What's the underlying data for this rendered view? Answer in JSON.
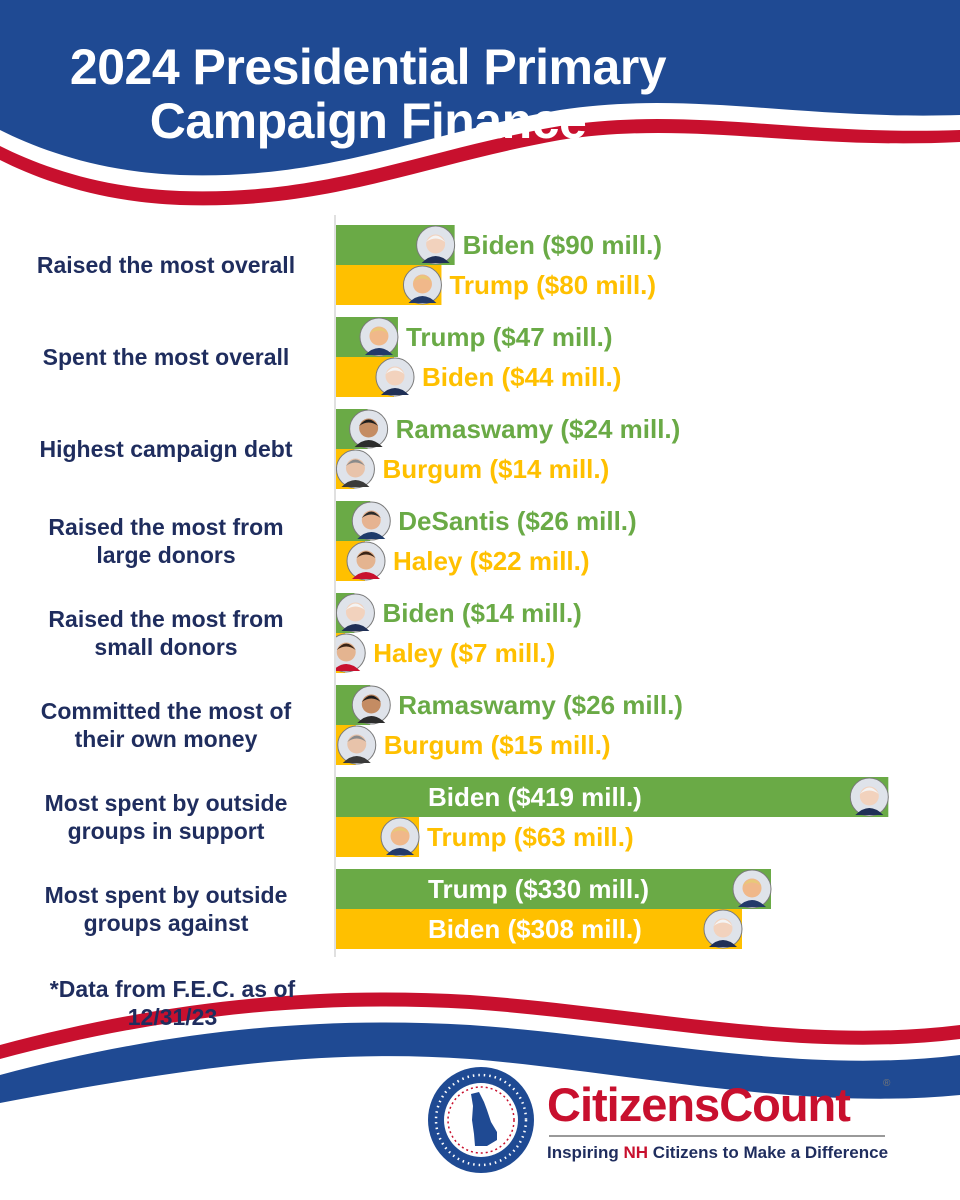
{
  "title": {
    "line1": "2024 Presidential Primary",
    "line2": "Campaign Finance"
  },
  "colors": {
    "navy": "#1f4a93",
    "red": "#c8102e",
    "text_navy": "#1f2d5e",
    "first_bar": "#6aaa46",
    "second_bar": "#ffc000"
  },
  "chart_data": {
    "type": "bar",
    "orientation": "horizontal",
    "unit": "million USD",
    "xlim": [
      0,
      440
    ],
    "grid": false,
    "categories": [
      "Raised the most overall",
      "Spent the most overall",
      "Highest campaign debt",
      "Raised the most from large donors",
      "Raised the most from small donors",
      "Committed the most of their own money",
      "Most spent by outside groups in support",
      "Most spent by outside groups against"
    ],
    "groups": [
      {
        "category": "Raised the most overall",
        "lines": [
          "Raised the most overall"
        ],
        "bars": [
          {
            "candidate": "Biden",
            "value": 90,
            "label": "Biden ($90 mill.)",
            "photo_icon": "biden-photo-icon"
          },
          {
            "candidate": "Trump",
            "value": 80,
            "label": "Trump ($80 mill.)",
            "photo_icon": "trump-photo-icon"
          }
        ]
      },
      {
        "category": "Spent the most overall",
        "lines": [
          "Spent the most overall"
        ],
        "bars": [
          {
            "candidate": "Trump",
            "value": 47,
            "label": "Trump ($47 mill.)",
            "photo_icon": "trump-photo-icon"
          },
          {
            "candidate": "Biden",
            "value": 44,
            "label": "Biden ($44 mill.)",
            "photo_icon": "biden-photo-icon"
          }
        ]
      },
      {
        "category": "Highest campaign debt",
        "lines": [
          "Highest campaign debt"
        ],
        "bars": [
          {
            "candidate": "Ramaswamy",
            "value": 24,
            "label": "Ramaswamy ($24 mill.)",
            "photo_icon": "ramaswamy-photo-icon"
          },
          {
            "candidate": "Burgum",
            "value": 14,
            "label": "Burgum ($14 mill.)",
            "photo_icon": "burgum-photo-icon"
          }
        ]
      },
      {
        "category": "Raised the most from large donors",
        "lines": [
          "Raised the most from",
          "large donors"
        ],
        "bars": [
          {
            "candidate": "DeSantis",
            "value": 26,
            "label": "DeSantis ($26 mill.)",
            "photo_icon": "desantis-photo-icon"
          },
          {
            "candidate": "Haley",
            "value": 22,
            "label": "Haley ($22 mill.)",
            "photo_icon": "haley-photo-icon"
          }
        ]
      },
      {
        "category": "Raised the most from small donors",
        "lines": [
          "Raised the most from",
          "small donors"
        ],
        "bars": [
          {
            "candidate": "Biden",
            "value": 14,
            "label": "Biden ($14 mill.)",
            "photo_icon": "biden-photo-icon"
          },
          {
            "candidate": "Haley",
            "value": 7,
            "label": "Haley ($7 mill.)",
            "photo_icon": "haley-photo-icon"
          }
        ]
      },
      {
        "category": "Committed the most of their own money",
        "lines": [
          "Committed the most of",
          "their own money"
        ],
        "bars": [
          {
            "candidate": "Ramaswamy",
            "value": 26,
            "label": "Ramaswamy ($26 mill.)",
            "photo_icon": "ramaswamy-photo-icon"
          },
          {
            "candidate": "Burgum",
            "value": 15,
            "label": "Burgum ($15 mill.)",
            "photo_icon": "burgum-photo-icon"
          }
        ]
      },
      {
        "category": "Most spent by outside groups in support",
        "lines": [
          "Most spent by outside",
          "groups in support"
        ],
        "bars": [
          {
            "candidate": "Biden",
            "value": 419,
            "label": "Biden ($419 mill.)",
            "photo_icon": "biden-photo-icon"
          },
          {
            "candidate": "Trump",
            "value": 63,
            "label": "Trump ($63 mill.)",
            "photo_icon": "trump-photo-icon"
          }
        ]
      },
      {
        "category": "Most spent by outside groups against",
        "lines": [
          "Most spent by outside",
          "groups against"
        ],
        "bars": [
          {
            "candidate": "Trump",
            "value": 330,
            "label": "Trump ($330 mill.)",
            "photo_icon": "trump-photo-icon"
          },
          {
            "candidate": "Biden",
            "value": 308,
            "label": "Biden ($308 mill.)",
            "photo_icon": "biden-photo-icon"
          }
        ]
      }
    ]
  },
  "footnote": {
    "line1": "*Data from F.E.C. as of",
    "line2": "12/31/23"
  },
  "logo": {
    "brand_name": "CitizensCount",
    "registered_mark": "®",
    "tagline_before": "Inspiring ",
    "tagline_highlight": "NH",
    "tagline_after": " Citizens to Make a Difference",
    "seal_icon": "nh-state-seal-icon"
  }
}
